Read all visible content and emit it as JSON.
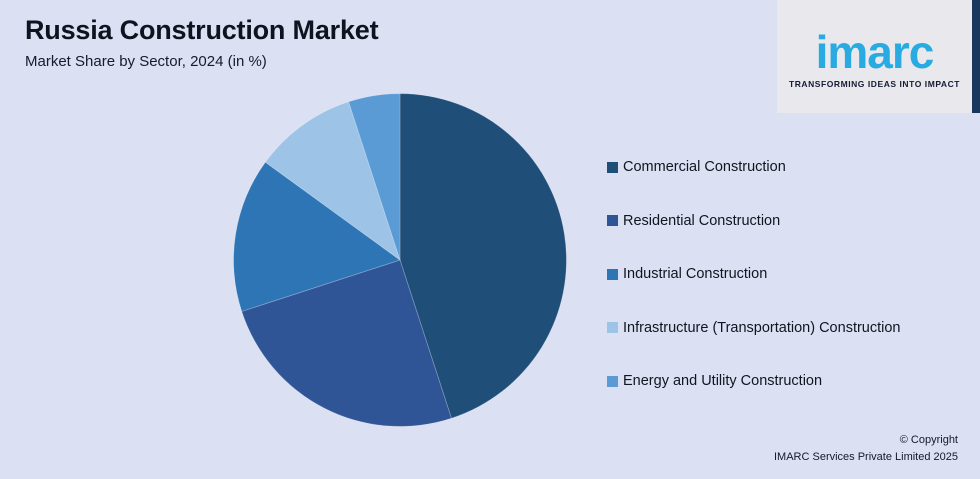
{
  "page": {
    "background_color": "#dbe1f3",
    "accent_bar_color": "#17375e"
  },
  "header": {
    "title": "Russia Construction Market",
    "subtitle": "Market Share by Sector, 2024 (in %)"
  },
  "logo": {
    "text": "imarc",
    "tagline": "TRANSFORMING IDEAS INTO IMPACT",
    "brand_color": "#29abe2",
    "card_color": "#e9e9ed"
  },
  "chart_data": {
    "type": "pie",
    "title": "Russia Construction Market",
    "subtitle": "Market Share by Sector, 2024 (in %)",
    "categories": [
      "Commercial Construction",
      "Residential Construction",
      "Industrial Construction",
      "Infrastructure (Transportation) Construction",
      "Energy and Utility Construction"
    ],
    "values": [
      45,
      25,
      15,
      10,
      5
    ],
    "unit": "%",
    "colors": [
      "#1F4E79",
      "#2F5597",
      "#2E75B6",
      "#9DC3E6",
      "#5B9BD5"
    ],
    "start_angle_deg": 0,
    "direction": "clockwise",
    "legend_position": "right",
    "data_labels_shown": false
  },
  "footer": {
    "line1": "© Copyright",
    "line2": "IMARC Services Private Limited 2025"
  }
}
